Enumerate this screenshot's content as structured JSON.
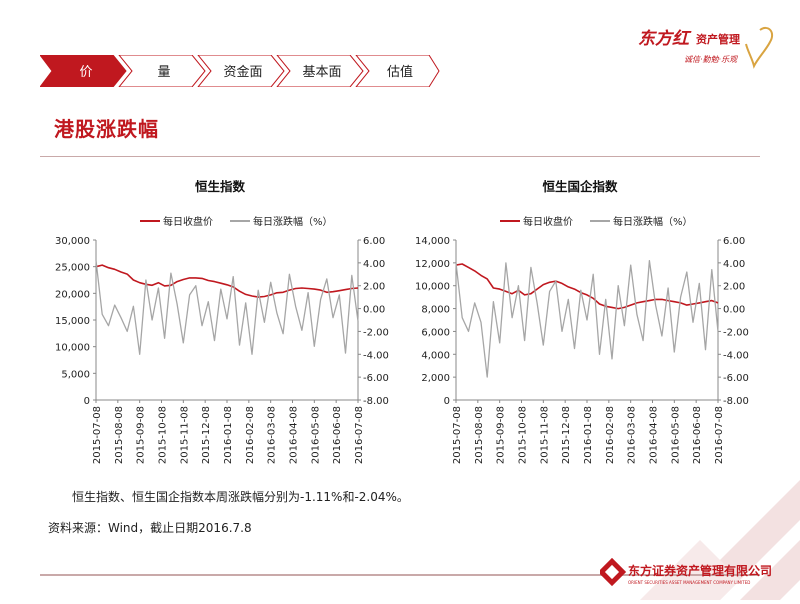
{
  "logo_top": {
    "name": "东方红",
    "sub": "资产管理",
    "slogan": "诚信·勤勉·乐观"
  },
  "tabs": [
    {
      "label": "价",
      "active": true
    },
    {
      "label": "量",
      "active": false
    },
    {
      "label": "资金面",
      "active": false
    },
    {
      "label": "基本面",
      "active": false
    },
    {
      "label": "估值",
      "active": false
    }
  ],
  "page_title": "港股涨跌幅",
  "colors": {
    "accent": "#c0181f",
    "close_line": "#c0181f",
    "change_line": "#a6a6a6"
  },
  "chart_data": [
    {
      "type": "line",
      "title": "恒生指数",
      "legend": "top",
      "x_ticks": [
        "2015-07-08",
        "2015-08-08",
        "2015-09-08",
        "2015-10-08",
        "2015-11-08",
        "2015-12-08",
        "2016-01-08",
        "2016-02-08",
        "2016-03-08",
        "2016-04-08",
        "2016-05-08",
        "2016-06-08",
        "2016-07-08"
      ],
      "y_left": {
        "min": 0,
        "max": 30000,
        "ticks": [
          "0",
          "5,000",
          "10,000",
          "15,000",
          "20,000",
          "25,000",
          "30,000"
        ]
      },
      "y_right": {
        "min": -8,
        "max": 6,
        "ticks": [
          "-8.00",
          "-6.00",
          "-4.00",
          "-2.00",
          "0.00",
          "2.00",
          "4.00",
          "6.00"
        ]
      },
      "series": [
        {
          "name": "每日收盘价",
          "axis": "left",
          "color": "#c0181f",
          "values": [
            25000,
            25300,
            24800,
            24500,
            24000,
            23600,
            22500,
            22000,
            21700,
            21500,
            22000,
            21400,
            21500,
            22200,
            22600,
            22900,
            22900,
            22800,
            22400,
            22200,
            21900,
            21600,
            21200,
            20400,
            19800,
            19500,
            19300,
            19400,
            19700,
            20100,
            20200,
            20600,
            20900,
            21000,
            20900,
            20800,
            20600,
            20200,
            20300,
            20500,
            20700,
            20900,
            21000
          ]
        },
        {
          "name": "每日涨跌幅（%）",
          "axis": "right",
          "color": "#a6a6a6",
          "values": [
            4.2,
            -0.5,
            -1.5,
            0.3,
            -0.8,
            -2.0,
            0.2,
            -4.0,
            2.5,
            -1.0,
            1.8,
            -2.6,
            3.1,
            0.4,
            -3.0,
            1.2,
            2.0,
            -1.5,
            0.6,
            -2.8,
            1.7,
            -0.9,
            2.8,
            -3.2,
            0.5,
            -4.0,
            1.6,
            -1.2,
            2.3,
            -0.4,
            -2.2,
            3.0,
            0.2,
            -1.9,
            1.4,
            -3.3,
            0.8,
            2.6,
            -0.8,
            1.2,
            -3.9,
            2.9,
            -1.1
          ]
        }
      ]
    },
    {
      "type": "line",
      "title": "恒生国企指数",
      "legend": "top",
      "x_ticks": [
        "2015-07-08",
        "2015-08-08",
        "2015-09-08",
        "2015-10-08",
        "2015-11-08",
        "2015-12-08",
        "2016-01-08",
        "2016-02-08",
        "2016-03-08",
        "2016-04-08",
        "2016-05-08",
        "2016-06-08",
        "2016-07-08"
      ],
      "y_left": {
        "min": 0,
        "max": 14000,
        "ticks": [
          "0",
          "2,000",
          "4,000",
          "6,000",
          "8,000",
          "10,000",
          "12,000",
          "14,000"
        ]
      },
      "y_right": {
        "min": -8,
        "max": 6,
        "ticks": [
          "-8.00",
          "-6.00",
          "-4.00",
          "-2.00",
          "0.00",
          "2.00",
          "4.00",
          "6.00"
        ]
      },
      "series": [
        {
          "name": "每日收盘价",
          "axis": "left",
          "color": "#c0181f",
          "values": [
            11800,
            11900,
            11600,
            11300,
            10900,
            10600,
            9800,
            9700,
            9500,
            9300,
            9600,
            9200,
            9300,
            9700,
            10100,
            10300,
            10400,
            10200,
            9900,
            9700,
            9400,
            9200,
            8900,
            8400,
            8200,
            8100,
            8000,
            8100,
            8300,
            8500,
            8600,
            8700,
            8800,
            8800,
            8700,
            8600,
            8500,
            8300,
            8400,
            8500,
            8600,
            8700,
            8500
          ]
        },
        {
          "name": "每日涨跌幅（%）",
          "axis": "right",
          "color": "#a6a6a6",
          "values": [
            4.0,
            -0.8,
            -2.0,
            0.5,
            -1.2,
            -6.0,
            0.6,
            -3.0,
            4.0,
            -0.8,
            2.0,
            -2.8,
            3.6,
            0.5,
            -3.2,
            1.5,
            2.4,
            -2.0,
            0.8,
            -3.5,
            1.6,
            -1.0,
            3.0,
            -4.0,
            0.8,
            -4.4,
            2.0,
            -1.5,
            3.8,
            -0.5,
            -2.8,
            4.2,
            0.3,
            -2.4,
            1.8,
            -3.8,
            1.0,
            3.2,
            -1.2,
            2.2,
            -3.6,
            3.4,
            -2.0
          ]
        }
      ]
    }
  ],
  "note": "恒生指数、恒生国企指数本周涨跌幅分别为-1.11%和-2.04%。",
  "source": "资料来源：Wind，截止日期2016.7.8",
  "logo_bottom": {
    "name": "东方证券资产管理有限公司",
    "sub": "ORIENT SECURITIES ASSET MANAGEMENT COMPANY LIMITED"
  }
}
